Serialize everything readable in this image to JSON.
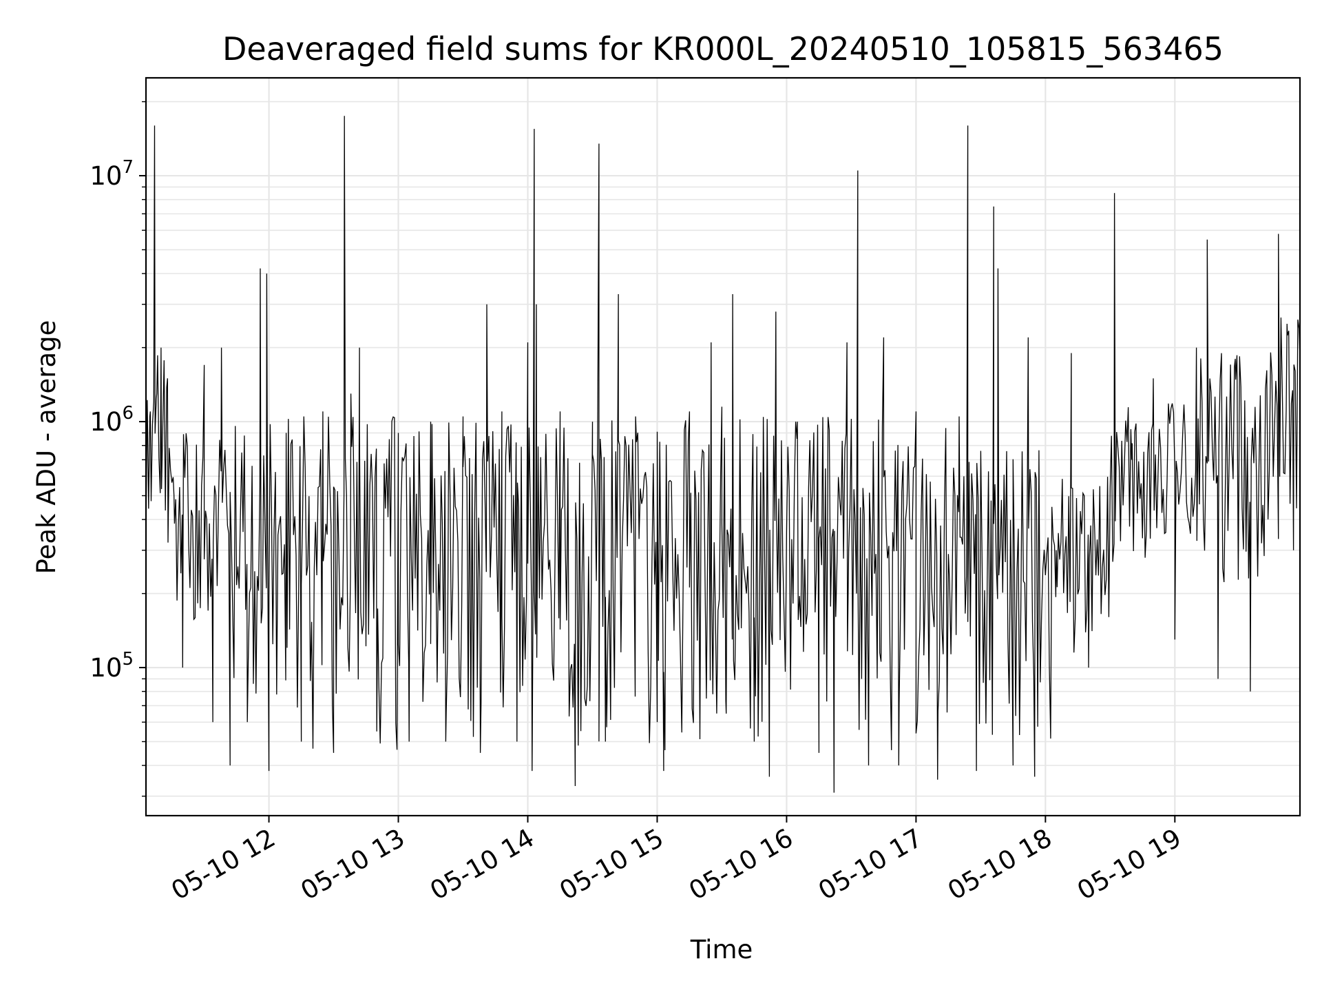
{
  "chart_data": {
    "type": "line",
    "title": "Deaveraged field sums for KR000L_20240510_105815_563465",
    "xlabel": "Time",
    "ylabel": "Peak ADU - average",
    "y_scale": "log",
    "ylim": [
      25000,
      25000000
    ],
    "x_range": [
      "2024-05-10 11:03",
      "2024-05-10 19:58"
    ],
    "grid": true,
    "line_color": "#000000",
    "grid_color": "#e6e6e6",
    "x_ticks": [
      {
        "time": "2024-05-10 12:00",
        "label": "05-10 12"
      },
      {
        "time": "2024-05-10 13:00",
        "label": "05-10 13"
      },
      {
        "time": "2024-05-10 14:00",
        "label": "05-10 14"
      },
      {
        "time": "2024-05-10 15:00",
        "label": "05-10 15"
      },
      {
        "time": "2024-05-10 16:00",
        "label": "05-10 16"
      },
      {
        "time": "2024-05-10 17:00",
        "label": "05-10 17"
      },
      {
        "time": "2024-05-10 18:00",
        "label": "05-10 18"
      },
      {
        "time": "2024-05-10 19:00",
        "label": "05-10 19"
      }
    ],
    "y_ticks": [
      {
        "value": 100000,
        "base": "10",
        "exp": "5"
      },
      {
        "value": 1000000,
        "base": "10",
        "exp": "6"
      },
      {
        "value": 10000000,
        "base": "10",
        "exp": "7"
      }
    ],
    "series": [
      {
        "points": [
          [
            "2024-05-10 11:03",
            300000
          ],
          [
            "2024-05-10 11:05",
            1100000
          ],
          [
            "2024-05-10 11:07",
            16000000
          ],
          [
            "2024-05-10 11:08",
            1300000
          ],
          [
            "2024-05-10 11:10",
            2000000
          ],
          [
            "2024-05-10 11:13",
            1500000
          ],
          [
            "2024-05-10 11:16",
            500000
          ],
          [
            "2024-05-10 11:20",
            100000
          ],
          [
            "2024-05-10 11:25",
            250000
          ],
          [
            "2024-05-10 11:30",
            1700000
          ],
          [
            "2024-05-10 11:34",
            60000
          ],
          [
            "2024-05-10 11:38",
            2000000
          ],
          [
            "2024-05-10 11:42",
            40000
          ],
          [
            "2024-05-10 11:50",
            60000
          ],
          [
            "2024-05-10 11:56",
            4200000
          ],
          [
            "2024-05-10 11:59",
            4000000
          ],
          [
            "2024-05-10 12:00",
            38000
          ],
          [
            "2024-05-10 12:08",
            900000
          ],
          [
            "2024-05-10 12:15",
            50000
          ],
          [
            "2024-05-10 12:25",
            1100000
          ],
          [
            "2024-05-10 12:30",
            45000
          ],
          [
            "2024-05-10 12:35",
            17500000
          ],
          [
            "2024-05-10 12:38",
            1300000
          ],
          [
            "2024-05-10 12:42",
            2000000
          ],
          [
            "2024-05-10 12:50",
            55000
          ],
          [
            "2024-05-10 13:00",
            900000
          ],
          [
            "2024-05-10 13:05",
            50000
          ],
          [
            "2024-05-10 13:15",
            1000000
          ],
          [
            "2024-05-10 13:22",
            50000
          ],
          [
            "2024-05-10 13:30",
            1050000
          ],
          [
            "2024-05-10 13:38",
            45000
          ],
          [
            "2024-05-10 13:41",
            3000000
          ],
          [
            "2024-05-10 13:48",
            1100000
          ],
          [
            "2024-05-10 13:55",
            50000
          ],
          [
            "2024-05-10 14:00",
            2100000
          ],
          [
            "2024-05-10 14:02",
            38000
          ],
          [
            "2024-05-10 14:03",
            15500000
          ],
          [
            "2024-05-10 14:04",
            3000000
          ],
          [
            "2024-05-10 14:15",
            1100000
          ],
          [
            "2024-05-10 14:22",
            33000
          ],
          [
            "2024-05-10 14:30",
            1000000
          ],
          [
            "2024-05-10 14:33",
            13500000
          ],
          [
            "2024-05-10 14:36",
            50000
          ],
          [
            "2024-05-10 14:42",
            3300000
          ],
          [
            "2024-05-10 14:50",
            1050000
          ],
          [
            "2024-05-10 15:00",
            60000
          ],
          [
            "2024-05-10 15:03",
            38000
          ],
          [
            "2024-05-10 15:15",
            1100000
          ],
          [
            "2024-05-10 15:25",
            2100000
          ],
          [
            "2024-05-10 15:30",
            1150000
          ],
          [
            "2024-05-10 15:32",
            65000
          ],
          [
            "2024-05-10 15:35",
            3300000
          ],
          [
            "2024-05-10 15:45",
            50000
          ],
          [
            "2024-05-10 15:52",
            36000
          ],
          [
            "2024-05-10 15:55",
            2800000
          ],
          [
            "2024-05-10 16:05",
            1000000
          ],
          [
            "2024-05-10 16:15",
            45000
          ],
          [
            "2024-05-10 16:22",
            31000
          ],
          [
            "2024-05-10 16:28",
            2100000
          ],
          [
            "2024-05-10 16:33",
            10500000
          ],
          [
            "2024-05-10 16:38",
            40000
          ],
          [
            "2024-05-10 16:45",
            2200000
          ],
          [
            "2024-05-10 16:52",
            40000
          ],
          [
            "2024-05-10 17:00",
            1100000
          ],
          [
            "2024-05-10 17:10",
            35000
          ],
          [
            "2024-05-10 17:20",
            1050000
          ],
          [
            "2024-05-10 17:24",
            16000000
          ],
          [
            "2024-05-10 17:28",
            38000
          ],
          [
            "2024-05-10 17:36",
            7500000
          ],
          [
            "2024-05-10 17:38",
            4200000
          ],
          [
            "2024-05-10 17:45",
            40000
          ],
          [
            "2024-05-10 17:52",
            2200000
          ],
          [
            "2024-05-10 17:55",
            36000
          ],
          [
            "2024-05-10 18:05",
            300000
          ],
          [
            "2024-05-10 18:12",
            1900000
          ],
          [
            "2024-05-10 18:20",
            100000
          ],
          [
            "2024-05-10 18:32",
            8500000
          ],
          [
            "2024-05-10 18:40",
            700000
          ],
          [
            "2024-05-10 18:50",
            1500000
          ],
          [
            "2024-05-10 19:00",
            130000
          ],
          [
            "2024-05-10 19:10",
            2000000
          ],
          [
            "2024-05-10 19:15",
            5500000
          ],
          [
            "2024-05-10 19:20",
            90000
          ],
          [
            "2024-05-10 19:28",
            1800000
          ],
          [
            "2024-05-10 19:35",
            80000
          ],
          [
            "2024-05-10 19:45",
            1500000
          ],
          [
            "2024-05-10 19:48",
            5800000
          ],
          [
            "2024-05-10 19:52",
            2500000
          ],
          [
            "2024-05-10 19:55",
            300000
          ],
          [
            "2024-05-10 19:58",
            1800000
          ]
        ]
      }
    ]
  }
}
